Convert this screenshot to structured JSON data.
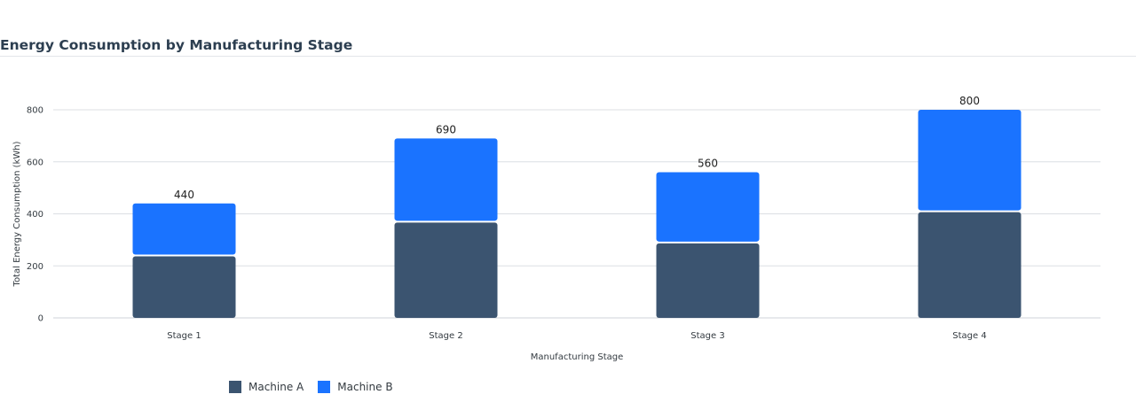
{
  "title": "Energy Consumption by Manufacturing Stage",
  "chart_data": {
    "type": "bar",
    "stacked": true,
    "categories": [
      "Stage 1",
      "Stage 2",
      "Stage 3",
      "Stage 4"
    ],
    "series": [
      {
        "name": "Machine A",
        "values": [
          240,
          370,
          290,
          410
        ],
        "color": "#3b5470"
      },
      {
        "name": "Machine B",
        "values": [
          200,
          320,
          270,
          390
        ],
        "color": "#1a73ff"
      }
    ],
    "totals": [
      440,
      690,
      560,
      800
    ],
    "xlabel": "Manufacturing Stage",
    "ylabel": "Total Energy Consumption (kWh)",
    "ylim": [
      0,
      800
    ],
    "yticks": [
      0,
      200,
      400,
      600,
      800
    ],
    "grid": true,
    "legend_position": "bottom-left"
  },
  "legend": {
    "items": [
      {
        "label": "Machine A",
        "color": "#3b5470"
      },
      {
        "label": "Machine B",
        "color": "#1a73ff"
      }
    ]
  }
}
